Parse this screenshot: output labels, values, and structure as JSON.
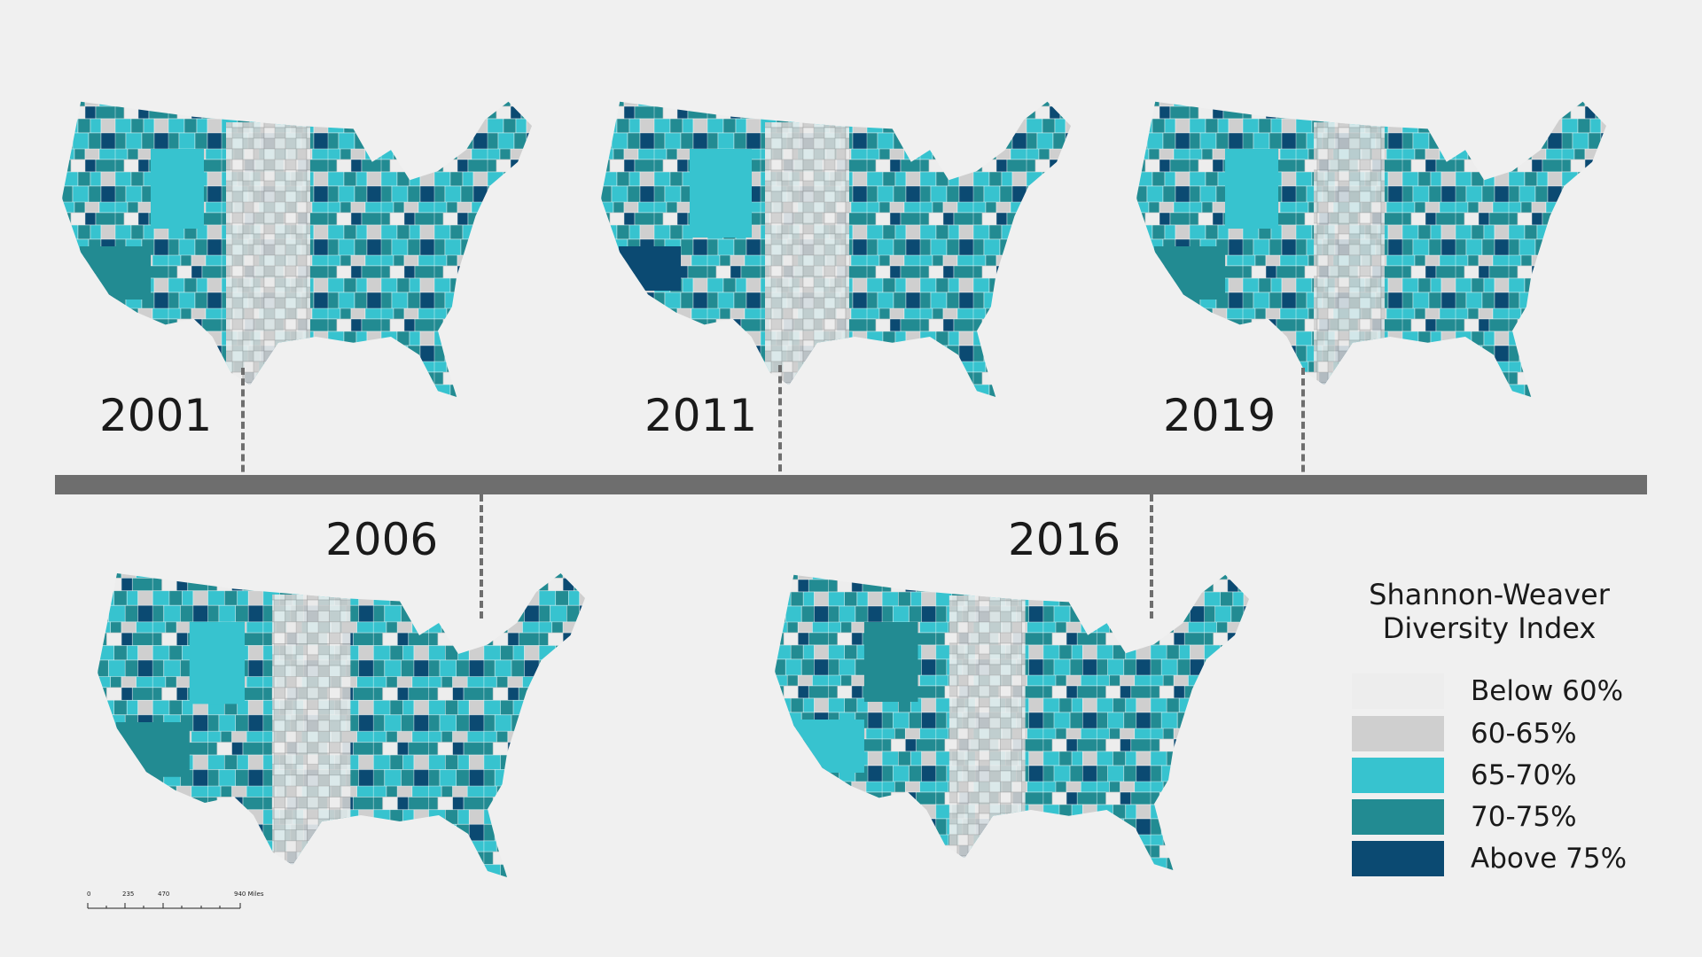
{
  "maps": [
    {
      "year": "2001"
    },
    {
      "year": "2006"
    },
    {
      "year": "2011"
    },
    {
      "year": "2016"
    },
    {
      "year": "2019"
    }
  ],
  "legend": {
    "title_line1": "Shannon-Weaver",
    "title_line2": "Diversity Index",
    "items": [
      {
        "label": "Below 60%",
        "color": "#ededed"
      },
      {
        "label": "60-65%",
        "color": "#cfcfcf"
      },
      {
        "label": "65-70%",
        "color": "#37c3cf"
      },
      {
        "label": "70-75%",
        "color": "#228b92"
      },
      {
        "label": "Above 75%",
        "color": "#0b4a72"
      }
    ]
  },
  "scale": {
    "ticks": [
      "0",
      "235",
      "470",
      "940 Miles"
    ]
  }
}
